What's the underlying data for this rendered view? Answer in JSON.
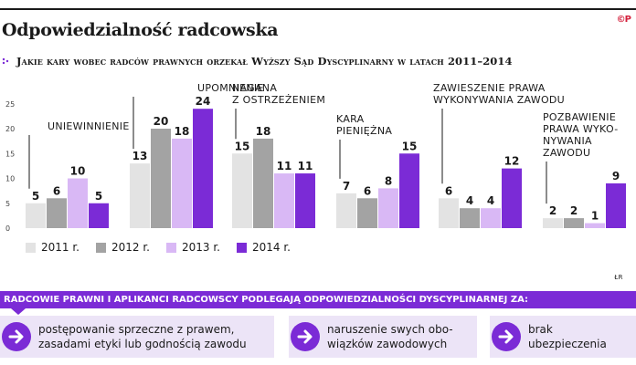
{
  "header": {
    "title": "Odpowiedzialność radcowska",
    "logo_text": "©P",
    "subtitle": "Jakie kary wobec radców prawnych orzekał Wyższy Sąd Dyscyplinarny w latach 2011–2014"
  },
  "colors": {
    "s2011": "#e3e3e3",
    "s2012": "#a3a3a3",
    "s2013": "#d9b8f5",
    "s2014": "#7b2bd6",
    "accent": "#7b2bd6",
    "card_bg": "#ece4f7"
  },
  "chart_data": {
    "type": "bar",
    "y_ticks": [
      "0",
      "5",
      "10",
      "15",
      "20",
      "25"
    ],
    "ylim": [
      0,
      25
    ],
    "series": [
      {
        "name": "2011 r."
      },
      {
        "name": "2012 r."
      },
      {
        "name": "2013 r."
      },
      {
        "name": "2014 r."
      }
    ],
    "groups": [
      {
        "label": [
          "UNIEWINNIENIE"
        ],
        "values": [
          5,
          6,
          10,
          5
        ]
      },
      {
        "label": [
          "UPOMNIENIE"
        ],
        "values": [
          13,
          20,
          18,
          24
        ]
      },
      {
        "label": [
          "NAGANA",
          "Z OSTRZEŻENIEM"
        ],
        "values": [
          15,
          18,
          11,
          11
        ]
      },
      {
        "label": [
          "KARA",
          "PIENIĘŻNA"
        ],
        "values": [
          7,
          6,
          8,
          15
        ]
      },
      {
        "label": [
          "ZAWIESZENIE PRAWA",
          "WYKONYWANIA ZAWODU"
        ],
        "values": [
          6,
          4,
          4,
          12
        ]
      },
      {
        "label": [
          "POZBAWIENIE",
          "PRAWA WYKO-",
          "NYWANIA",
          "ZAWODU"
        ],
        "values": [
          2,
          2,
          1,
          9
        ]
      }
    ],
    "grid": false
  },
  "source": "ŁR",
  "banner": "RADCOWIE PRAWNI I APLIKANCI RADCOWSCY PODLEGAJĄ ODPOWIEDZIALNOŚCI DYSCYPLINARNEJ ZA:",
  "cards": [
    {
      "line1": "postępowanie sprzeczne z prawem,",
      "line2": "zasadami etyki lub godnością zawodu",
      "icon": "arrow-right-icon"
    },
    {
      "line1": "naruszenie swych obo-",
      "line2": "wiązków zawodowych",
      "icon": "arrow-right-icon"
    },
    {
      "line1": "brak",
      "line2": "ubezpieczenia",
      "icon": "arrow-right-icon"
    }
  ]
}
